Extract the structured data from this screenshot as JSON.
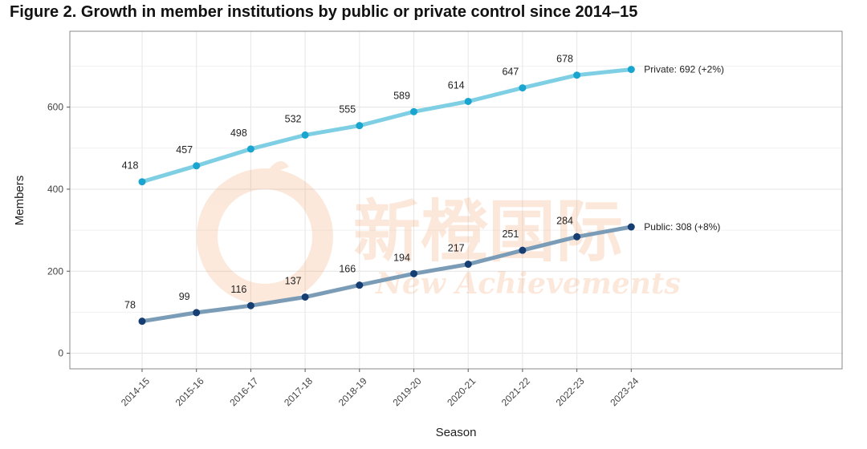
{
  "title": "Figure 2. Growth in member institutions by public or private control since 2014–15",
  "chart_data": {
    "type": "line",
    "xlabel": "Season",
    "ylabel": "Members",
    "categories": [
      "2014-15",
      "2015-16",
      "2016-17",
      "2017-18",
      "2018-19",
      "2019-20",
      "2020-21",
      "2021-22",
      "2022-23",
      "2023-24"
    ],
    "ylim": [
      -38,
      785
    ],
    "yticks": [
      0,
      200,
      400,
      600
    ],
    "yticks_labels": [
      "0",
      "200",
      "400",
      "600"
    ],
    "grid": true,
    "series": [
      {
        "name": "Private",
        "values": [
          418,
          457,
          498,
          532,
          555,
          589,
          614,
          647,
          678,
          692
        ],
        "point_labels": [
          "418",
          "457",
          "498",
          "532",
          "555",
          "589",
          "614",
          "647",
          "678"
        ],
        "end_label": "Private: 692 (+2%)",
        "line_color": "#7fcfe4",
        "point_color": "#1aa5d0"
      },
      {
        "name": "Public",
        "values": [
          78,
          99,
          116,
          137,
          166,
          194,
          217,
          251,
          284,
          308
        ],
        "point_labels": [
          "78",
          "99",
          "116",
          "137",
          "166",
          "194",
          "217",
          "251",
          "284"
        ],
        "end_label": "Public: 308 (+8%)",
        "line_color": "#7b9cb6",
        "point_color": "#173e73"
      }
    ]
  },
  "watermark": {
    "cn_text": "新橙国际",
    "en_text": "New Achievements",
    "color": "#f6b28c"
  }
}
